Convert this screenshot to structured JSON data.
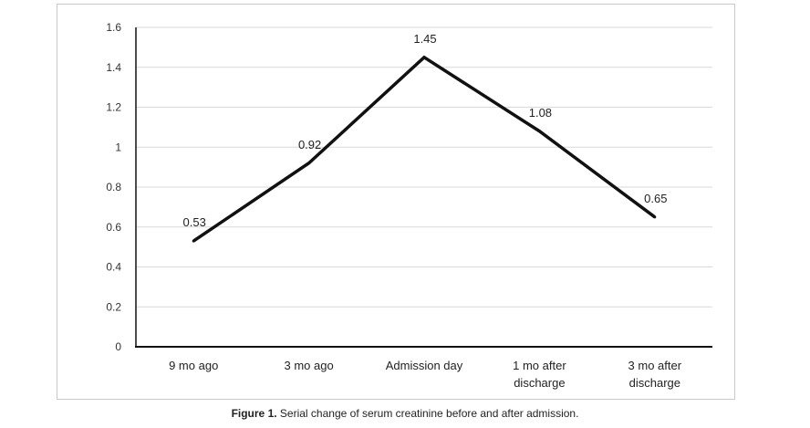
{
  "chart_data": {
    "type": "line",
    "categories": [
      [
        "9 mo ago"
      ],
      [
        "3 mo ago"
      ],
      [
        "Admission day"
      ],
      [
        "1 mo after",
        "discharge"
      ],
      [
        "3 mo after",
        "discharge"
      ]
    ],
    "values": [
      0.53,
      0.92,
      1.45,
      1.08,
      0.65
    ],
    "data_labels": [
      "0.53",
      "0.92",
      "1.45",
      "1.08",
      "0.65"
    ],
    "y_ticks": [
      "0",
      "0.2",
      "0.4",
      "0.6",
      "0.8",
      "1",
      "1.2",
      "1.4",
      "1.6"
    ],
    "ylim": [
      0,
      1.6
    ],
    "grid": true,
    "legend": false,
    "line_color": "#111111",
    "grid_color": "#d9d9d9",
    "title": "",
    "xlabel": "",
    "ylabel": ""
  },
  "caption": {
    "label": "Figure 1.",
    "text": "Serial change of serum creatinine before and after admission."
  }
}
